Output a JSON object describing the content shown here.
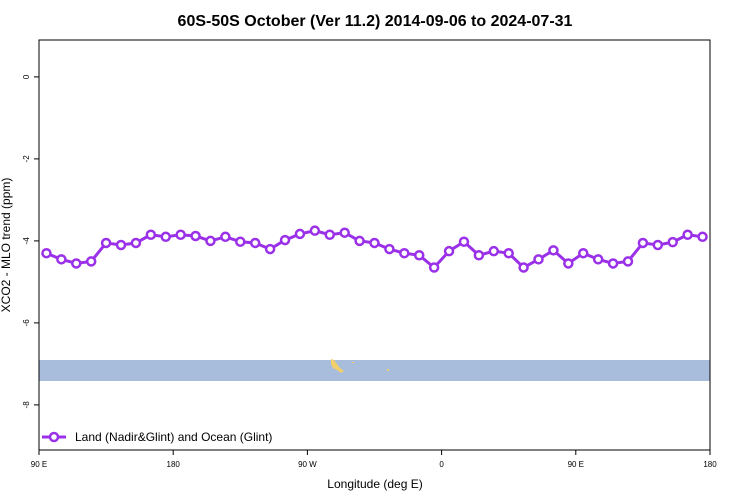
{
  "chart_data": {
    "type": "line",
    "title": "60S-50S October (Ver 11.2)   2014-09-06 to 2024-07-31",
    "xlabel": "Longitude (deg E)",
    "ylabel": "XCO2 - MLO trend (ppm)",
    "xlim": [
      -90,
      180
    ],
    "ylim": [
      -9.1,
      0.9
    ],
    "x_tick_values": [
      -90,
      -36,
      18,
      72,
      126,
      180
    ],
    "x_tick_labels": [
      "90 E",
      "180",
      "90 W",
      "0",
      "90 E",
      "180"
    ],
    "y_ticks": [
      0,
      -2,
      -4,
      -6,
      -8
    ],
    "grid": false,
    "legend_position": "bottom-left",
    "colors": {
      "series": "#9a30e8",
      "map_ocean": "#a7bddb",
      "map_land": "#f2cf6b"
    },
    "series": [
      {
        "name": "Land (Nadir&Glint) and Ocean (Glint)",
        "x": [
          -87,
          -81,
          -75,
          -69,
          -63,
          -57,
          -51,
          -45,
          -39,
          -33,
          -27,
          -21,
          -15,
          -9,
          -3,
          3,
          9,
          15,
          21,
          27,
          33,
          39,
          45,
          51,
          57,
          63,
          69,
          75,
          81,
          87,
          93,
          99,
          105,
          111,
          117,
          123,
          129,
          135,
          141,
          147,
          153,
          159,
          165,
          171,
          177
        ],
        "y": [
          -4.3,
          -4.45,
          -4.55,
          -4.5,
          -4.05,
          -4.1,
          -4.05,
          -3.85,
          -3.9,
          -3.85,
          -3.88,
          -4.0,
          -3.9,
          -4.02,
          -4.05,
          -4.2,
          -3.98,
          -3.83,
          -3.75,
          -3.85,
          -3.8,
          -4.0,
          -4.05,
          -4.2,
          -4.3,
          -4.35,
          -4.65,
          -4.25,
          -4.02,
          -4.35,
          -4.25,
          -4.3,
          -4.65,
          -4.45,
          -4.23,
          -4.55,
          -4.3,
          -4.45,
          -4.55,
          -4.5,
          -4.05,
          -4.1,
          -4.03,
          -3.85,
          -3.9
        ]
      }
    ]
  }
}
